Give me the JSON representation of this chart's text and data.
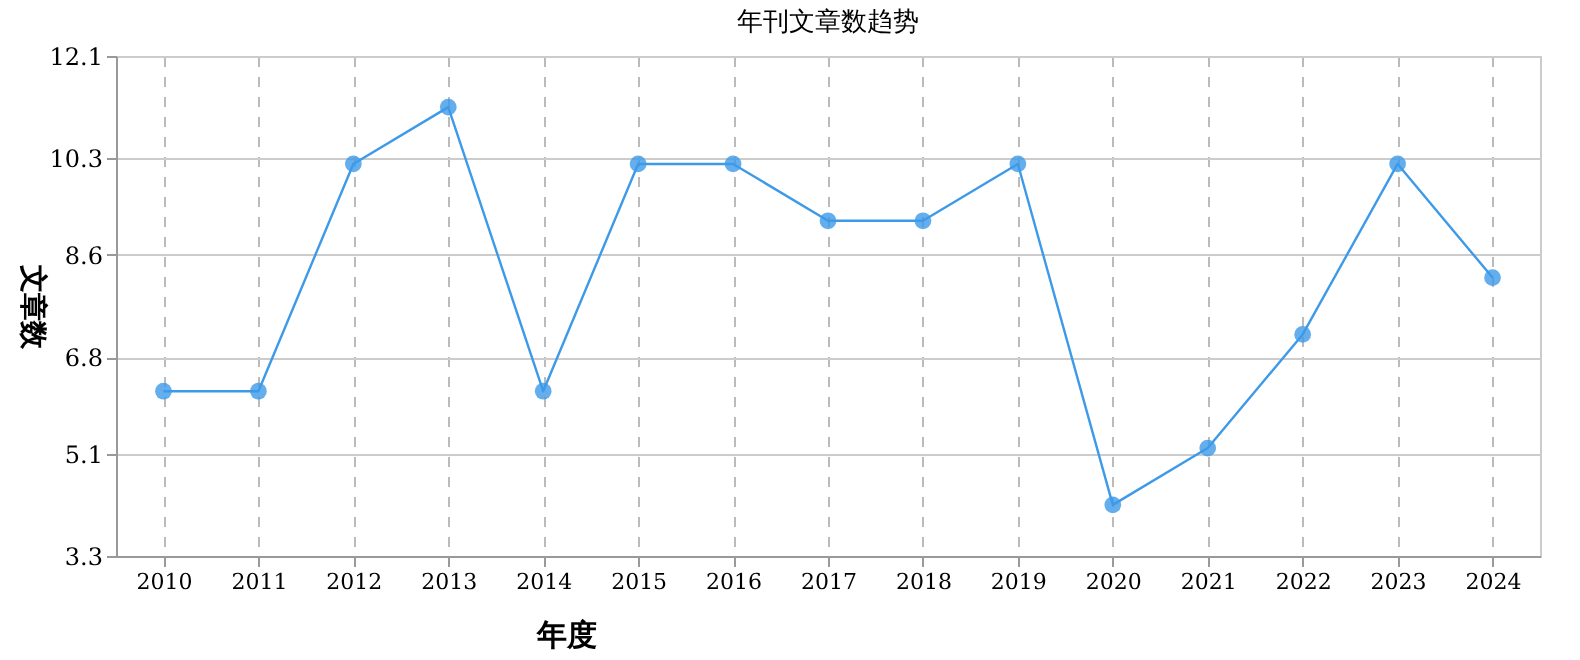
{
  "chart_data": {
    "type": "line",
    "title": "年刊文章数趋势",
    "xlabel": "年度",
    "ylabel": "文章数",
    "categories": [
      "2010",
      "2011",
      "2012",
      "2013",
      "2014",
      "2015",
      "2016",
      "2017",
      "2018",
      "2019",
      "2020",
      "2021",
      "2022",
      "2023",
      "2024"
    ],
    "series": [
      {
        "color": "#3d9ae8",
        "values": [
          6.2,
          6.2,
          10.2,
          11.2,
          6.2,
          10.2,
          10.2,
          9.2,
          9.2,
          10.2,
          4.2,
          5.2,
          7.2,
          10.2,
          8.2
        ]
      }
    ],
    "ylim": [
      3.3,
      12.1
    ],
    "yticks": [
      3.3,
      5.1,
      6.8,
      8.6,
      10.3,
      12.1
    ],
    "grid": true,
    "marker": "circle",
    "line_style": "solid",
    "legend": false
  }
}
